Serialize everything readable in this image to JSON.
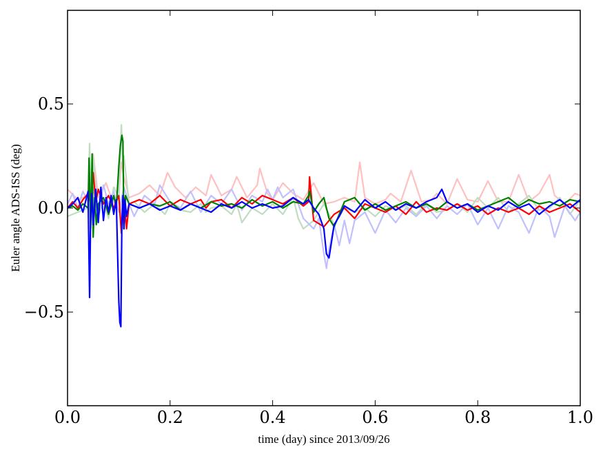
{
  "chart_data": {
    "type": "line",
    "title": "",
    "xlabel": "time (day) since 2013/09/26",
    "ylabel": "Euler angle ADS-ISS (deg)",
    "xlim": [
      0.0,
      1.0
    ],
    "ylim": [
      -0.95,
      0.95
    ],
    "grid": false,
    "legend": "none",
    "xticks": [
      0.0,
      0.2,
      0.4,
      0.6,
      0.8,
      1.0
    ],
    "xtick_labels": [
      "0.0",
      "0.2",
      "0.4",
      "0.6",
      "0.8",
      "1.0"
    ],
    "yticks": [
      -0.5,
      0.0,
      0.5
    ],
    "ytick_labels": [
      "−0.5",
      "0.0",
      "0.5"
    ],
    "series": [
      {
        "color": "#ffc0c0",
        "x": [
          0.0,
          0.02,
          0.04,
          0.045,
          0.05,
          0.06,
          0.075,
          0.09,
          0.1,
          0.105,
          0.11,
          0.12,
          0.14,
          0.16,
          0.18,
          0.195,
          0.21,
          0.23,
          0.25,
          0.27,
          0.28,
          0.3,
          0.32,
          0.33,
          0.35,
          0.37,
          0.375,
          0.39,
          0.4,
          0.42,
          0.44,
          0.46,
          0.48,
          0.5,
          0.52,
          0.54,
          0.56,
          0.57,
          0.58,
          0.6,
          0.62,
          0.63,
          0.65,
          0.67,
          0.69,
          0.71,
          0.72,
          0.74,
          0.76,
          0.78,
          0.8,
          0.82,
          0.84,
          0.86,
          0.88,
          0.9,
          0.92,
          0.94,
          0.95,
          0.97,
          0.99,
          1.0
        ],
        "y": [
          0.09,
          0.04,
          0.06,
          0.12,
          0.26,
          0.05,
          0.12,
          0.02,
          0.06,
          0.22,
          0.15,
          0.05,
          0.07,
          0.11,
          0.06,
          0.17,
          0.1,
          0.05,
          0.1,
          0.06,
          0.16,
          0.06,
          0.09,
          0.15,
          0.05,
          0.11,
          0.19,
          0.07,
          0.04,
          0.12,
          0.07,
          0.04,
          0.12,
          0.02,
          0.03,
          0.05,
          0.03,
          0.22,
          0.05,
          0.02,
          0.04,
          0.07,
          0.03,
          0.18,
          0.03,
          0.04,
          0.07,
          0.02,
          0.14,
          0.04,
          0.03,
          0.13,
          0.03,
          0.03,
          0.16,
          0.03,
          0.07,
          0.16,
          0.06,
          0.02,
          0.07,
          0.06
        ]
      },
      {
        "color": "#c0dcc0",
        "x": [
          0.0,
          0.02,
          0.04,
          0.043,
          0.046,
          0.05,
          0.06,
          0.07,
          0.08,
          0.09,
          0.1,
          0.105,
          0.108,
          0.11,
          0.12,
          0.13,
          0.15,
          0.17,
          0.19,
          0.2,
          0.22,
          0.24,
          0.26,
          0.27,
          0.28,
          0.3,
          0.32,
          0.33,
          0.34,
          0.36,
          0.38,
          0.4,
          0.42,
          0.44,
          0.45,
          0.46,
          0.48,
          0.5,
          0.52,
          0.54,
          0.56,
          0.58,
          0.6,
          0.62,
          0.64,
          0.66,
          0.68,
          0.7,
          0.72,
          0.74,
          0.76,
          0.78,
          0.8,
          0.82,
          0.84,
          0.86,
          0.88,
          0.9,
          0.92,
          0.94,
          0.96,
          0.98,
          1.0
        ],
        "y": [
          -0.04,
          -0.02,
          0.0,
          0.31,
          -0.08,
          0.25,
          -0.04,
          0.03,
          -0.05,
          0.1,
          0.05,
          0.4,
          0.2,
          0.25,
          0.02,
          0.03,
          -0.02,
          0.02,
          -0.03,
          0.02,
          -0.01,
          -0.02,
          0.02,
          -0.02,
          0.0,
          0.01,
          -0.03,
          0.02,
          -0.07,
          0.0,
          -0.03,
          0.02,
          -0.03,
          0.05,
          -0.05,
          -0.1,
          -0.06,
          0.02,
          -0.08,
          0.0,
          -0.02,
          0.0,
          -0.04,
          0.01,
          -0.01,
          0.01,
          -0.03,
          0.02,
          -0.02,
          -0.01,
          0.02,
          -0.02,
          0.05,
          0.0,
          0.05,
          -0.02,
          0.02,
          0.06,
          -0.01,
          0.0,
          0.05,
          -0.03,
          0.04
        ]
      },
      {
        "color": "#c0c0ff",
        "x": [
          0.0,
          0.01,
          0.02,
          0.03,
          0.04,
          0.05,
          0.06,
          0.07,
          0.08,
          0.09,
          0.1,
          0.11,
          0.12,
          0.13,
          0.15,
          0.17,
          0.18,
          0.2,
          0.22,
          0.24,
          0.26,
          0.28,
          0.3,
          0.32,
          0.34,
          0.36,
          0.38,
          0.39,
          0.4,
          0.41,
          0.42,
          0.44,
          0.46,
          0.48,
          0.49,
          0.5,
          0.505,
          0.51,
          0.52,
          0.53,
          0.54,
          0.55,
          0.56,
          0.58,
          0.6,
          0.62,
          0.64,
          0.66,
          0.68,
          0.7,
          0.72,
          0.74,
          0.76,
          0.78,
          0.8,
          0.82,
          0.84,
          0.86,
          0.88,
          0.9,
          0.92,
          0.94,
          0.95,
          0.97,
          0.99,
          1.0
        ],
        "y": [
          0.02,
          0.07,
          0.0,
          0.08,
          0.03,
          0.1,
          -0.03,
          0.11,
          0.02,
          0.08,
          -0.02,
          0.1,
          0.02,
          -0.04,
          0.06,
          0.02,
          0.11,
          0.03,
          0.0,
          0.08,
          -0.02,
          0.06,
          0.02,
          0.09,
          -0.01,
          0.06,
          0.03,
          0.09,
          0.04,
          0.1,
          0.05,
          0.09,
          -0.05,
          -0.1,
          -0.05,
          -0.22,
          -0.29,
          -0.2,
          -0.08,
          -0.18,
          -0.06,
          -0.17,
          -0.06,
          -0.02,
          -0.12,
          -0.01,
          -0.07,
          0.0,
          -0.04,
          0.01,
          -0.05,
          0.01,
          -0.03,
          0.02,
          -0.08,
          0.0,
          -0.1,
          0.01,
          -0.02,
          -0.12,
          0.01,
          -0.04,
          -0.14,
          0.01,
          -0.06,
          -0.02
        ]
      },
      {
        "color": "#ff0000",
        "x": [
          0.0,
          0.01,
          0.02,
          0.03,
          0.04,
          0.045,
          0.05,
          0.055,
          0.06,
          0.07,
          0.08,
          0.09,
          0.1,
          0.105,
          0.11,
          0.115,
          0.12,
          0.14,
          0.16,
          0.18,
          0.2,
          0.22,
          0.24,
          0.26,
          0.27,
          0.28,
          0.3,
          0.32,
          0.34,
          0.36,
          0.38,
          0.4,
          0.42,
          0.44,
          0.46,
          0.47,
          0.472,
          0.48,
          0.5,
          0.52,
          0.54,
          0.56,
          0.58,
          0.6,
          0.62,
          0.64,
          0.66,
          0.68,
          0.7,
          0.72,
          0.74,
          0.76,
          0.78,
          0.8,
          0.82,
          0.84,
          0.86,
          0.88,
          0.9,
          0.92,
          0.94,
          0.96,
          0.98,
          1.0
        ],
        "y": [
          0.0,
          0.03,
          0.0,
          0.04,
          0.07,
          0.02,
          0.17,
          0.03,
          0.09,
          0.02,
          0.06,
          0.0,
          0.06,
          -0.12,
          0.05,
          -0.1,
          0.02,
          0.04,
          0.02,
          0.06,
          0.01,
          0.04,
          0.02,
          0.04,
          0.0,
          0.03,
          0.04,
          0.0,
          0.05,
          0.02,
          0.06,
          0.04,
          0.02,
          0.05,
          0.01,
          0.03,
          0.15,
          -0.06,
          -0.09,
          -0.03,
          0.0,
          -0.05,
          0.02,
          0.0,
          -0.02,
          0.01,
          -0.03,
          0.03,
          -0.02,
          0.0,
          -0.01,
          0.02,
          -0.01,
          0.01,
          -0.03,
          0.0,
          -0.02,
          0.0,
          -0.03,
          0.01,
          -0.02,
          0.0,
          0.02,
          -0.02
        ]
      },
      {
        "color": "#008000",
        "x": [
          0.0,
          0.01,
          0.02,
          0.03,
          0.04,
          0.042,
          0.045,
          0.048,
          0.05,
          0.053,
          0.056,
          0.06,
          0.07,
          0.08,
          0.09,
          0.095,
          0.1,
          0.103,
          0.106,
          0.108,
          0.11,
          0.113,
          0.12,
          0.14,
          0.16,
          0.18,
          0.2,
          0.22,
          0.24,
          0.26,
          0.28,
          0.3,
          0.32,
          0.34,
          0.36,
          0.38,
          0.4,
          0.42,
          0.44,
          0.46,
          0.47,
          0.472,
          0.48,
          0.49,
          0.5,
          0.51,
          0.52,
          0.54,
          0.56,
          0.58,
          0.6,
          0.62,
          0.64,
          0.66,
          0.68,
          0.7,
          0.72,
          0.74,
          0.76,
          0.78,
          0.8,
          0.82,
          0.84,
          0.86,
          0.88,
          0.9,
          0.92,
          0.94,
          0.96,
          0.98,
          1.0
        ],
        "y": [
          0.0,
          0.01,
          -0.01,
          0.02,
          0.0,
          0.24,
          -0.1,
          0.26,
          -0.14,
          0.05,
          -0.08,
          0.02,
          0.05,
          -0.03,
          0.06,
          0.0,
          0.2,
          0.3,
          0.35,
          0.32,
          -0.1,
          0.06,
          0.02,
          0.0,
          0.02,
          0.01,
          0.03,
          -0.01,
          0.02,
          0.0,
          0.03,
          0.01,
          0.02,
          0.0,
          0.04,
          0.01,
          0.03,
          0.0,
          0.03,
          0.02,
          0.06,
          0.08,
          -0.02,
          0.02,
          0.05,
          -0.05,
          -0.09,
          0.03,
          0.05,
          -0.01,
          0.02,
          -0.01,
          0.01,
          0.03,
          0.0,
          0.02,
          -0.01,
          0.03,
          0.0,
          0.02,
          -0.01,
          0.01,
          0.03,
          0.05,
          0.01,
          0.04,
          0.02,
          0.03,
          0.01,
          0.04,
          0.03
        ]
      },
      {
        "color": "#0000ff",
        "x": [
          0.0,
          0.01,
          0.02,
          0.03,
          0.04,
          0.041,
          0.043,
          0.045,
          0.047,
          0.05,
          0.055,
          0.06,
          0.065,
          0.07,
          0.075,
          0.08,
          0.085,
          0.09,
          0.095,
          0.1,
          0.102,
          0.104,
          0.106,
          0.108,
          0.11,
          0.112,
          0.115,
          0.12,
          0.14,
          0.16,
          0.18,
          0.2,
          0.22,
          0.24,
          0.26,
          0.28,
          0.3,
          0.32,
          0.34,
          0.36,
          0.38,
          0.4,
          0.42,
          0.44,
          0.46,
          0.47,
          0.48,
          0.49,
          0.5,
          0.505,
          0.51,
          0.52,
          0.53,
          0.54,
          0.56,
          0.58,
          0.6,
          0.62,
          0.64,
          0.66,
          0.68,
          0.7,
          0.72,
          0.73,
          0.74,
          0.76,
          0.78,
          0.8,
          0.82,
          0.84,
          0.86,
          0.88,
          0.9,
          0.92,
          0.94,
          0.96,
          0.98,
          1.0
        ],
        "y": [
          0.0,
          0.02,
          0.05,
          -0.02,
          0.08,
          -0.1,
          -0.43,
          -0.05,
          0.07,
          -0.08,
          0.09,
          -0.07,
          0.1,
          -0.06,
          0.05,
          -0.02,
          0.06,
          -0.03,
          0.04,
          -0.45,
          -0.55,
          -0.57,
          -0.05,
          0.06,
          -0.1,
          0.04,
          -0.04,
          0.02,
          0.0,
          0.02,
          -0.01,
          0.01,
          -0.01,
          0.02,
          0.0,
          -0.02,
          0.02,
          0.0,
          0.03,
          0.0,
          0.02,
          0.0,
          0.01,
          0.05,
          0.02,
          0.04,
          0.0,
          -0.03,
          -0.1,
          -0.22,
          -0.24,
          -0.08,
          -0.04,
          0.01,
          -0.02,
          0.04,
          0.0,
          0.03,
          -0.01,
          0.02,
          0.0,
          0.03,
          0.05,
          0.09,
          0.03,
          0.0,
          0.02,
          -0.02,
          0.01,
          -0.01,
          0.03,
          0.0,
          0.02,
          -0.03,
          0.01,
          0.04,
          0.0,
          0.04
        ]
      }
    ]
  }
}
